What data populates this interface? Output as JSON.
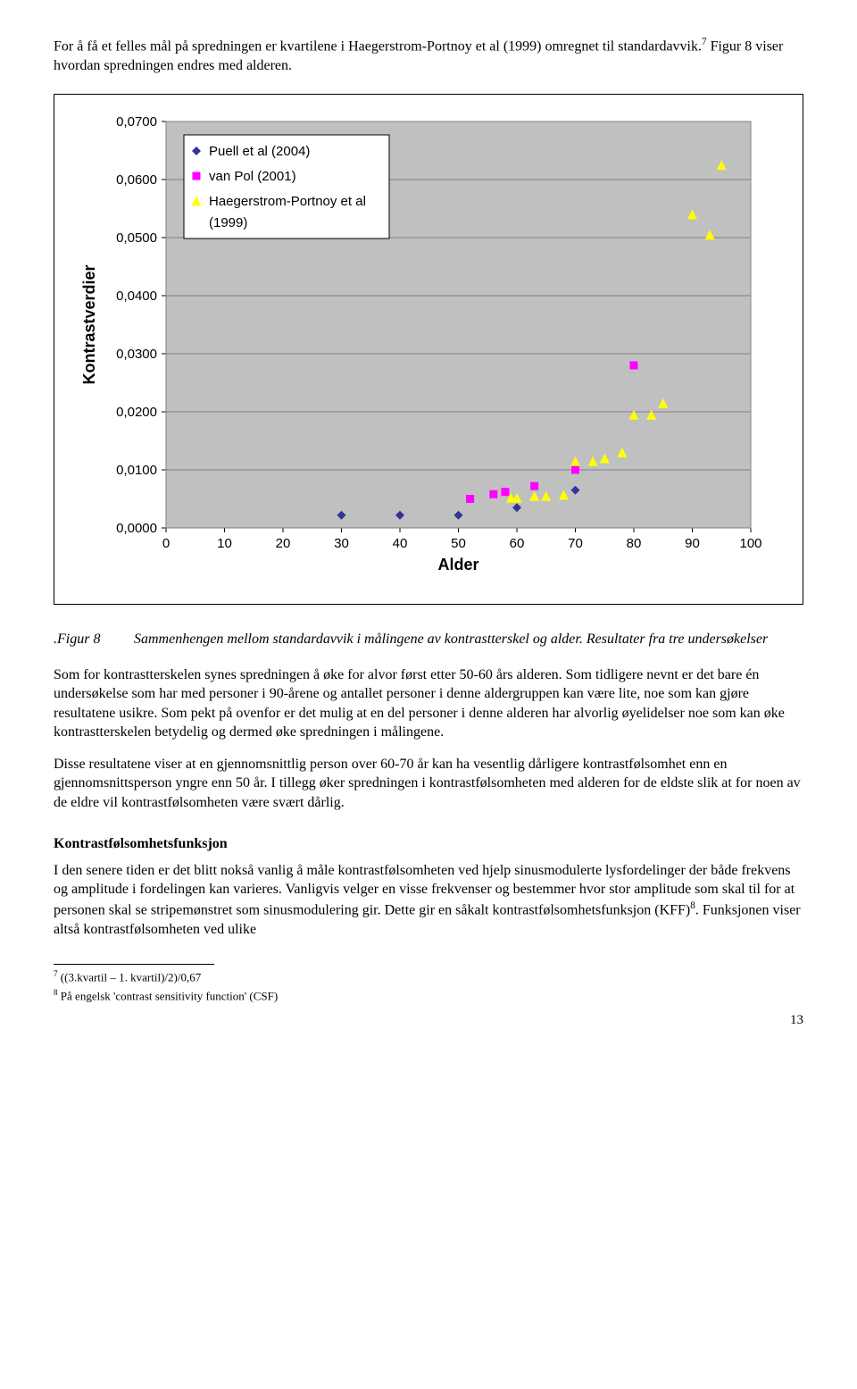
{
  "intro": "For å få et felles mål på spredningen er kvartilene i Haegerstrom-Portnoy et al (1999) omregnet til standardavvik.",
  "intro_sup": "7",
  "intro_tail": " Figur 8 viser hvordan spredningen endres med alderen.",
  "chart": {
    "type": "scatter",
    "ylabel": "Kontrastverdier",
    "xlabel": "Alder",
    "xlim": [
      0,
      100
    ],
    "ylim": [
      0,
      0.07
    ],
    "xticks": [
      0,
      10,
      20,
      30,
      40,
      50,
      60,
      70,
      80,
      90,
      100
    ],
    "yticks": [
      {
        "v": 0.0,
        "label": "0,0000"
      },
      {
        "v": 0.01,
        "label": "0,0100"
      },
      {
        "v": 0.02,
        "label": "0,0200"
      },
      {
        "v": 0.03,
        "label": "0,0300"
      },
      {
        "v": 0.04,
        "label": "0,0400"
      },
      {
        "v": 0.05,
        "label": "0,0500"
      },
      {
        "v": 0.06,
        "label": "0,0600"
      },
      {
        "v": 0.07,
        "label": "0,0700"
      }
    ],
    "background_color": "#c0c0c0",
    "grid_color": "#808080",
    "series": [
      {
        "name": "Puell et al (2004)",
        "marker": "diamond",
        "color": "#333399",
        "points": [
          [
            30,
            0.0022
          ],
          [
            40,
            0.0022
          ],
          [
            50,
            0.0022
          ],
          [
            60,
            0.0035
          ],
          [
            70,
            0.0065
          ]
        ]
      },
      {
        "name": "van Pol (2001)",
        "marker": "square",
        "color": "#ff00ff",
        "points": [
          [
            52,
            0.005
          ],
          [
            56,
            0.0058
          ],
          [
            58,
            0.0062
          ],
          [
            63,
            0.0072
          ],
          [
            70,
            0.01
          ],
          [
            80,
            0.028
          ]
        ]
      },
      {
        "name": "Haegerstrom-Portnoy et al (1999)",
        "marker": "triangle",
        "color": "#ffff00",
        "points": [
          [
            59,
            0.0052
          ],
          [
            60,
            0.0052
          ],
          [
            63,
            0.0055
          ],
          [
            65,
            0.0055
          ],
          [
            68,
            0.0057
          ],
          [
            70,
            0.0115
          ],
          [
            73,
            0.0115
          ],
          [
            75,
            0.012
          ],
          [
            78,
            0.013
          ],
          [
            80,
            0.0195
          ],
          [
            83,
            0.0195
          ],
          [
            85,
            0.0215
          ],
          [
            90,
            0.054
          ],
          [
            93,
            0.0505
          ],
          [
            95,
            0.0625
          ]
        ]
      }
    ],
    "legend": {
      "items": [
        {
          "marker": "diamond",
          "color": "#333399",
          "label": "Puell et al (2004)"
        },
        {
          "marker": "square",
          "color": "#ff00ff",
          "label": "van Pol (2001)"
        },
        {
          "marker": "triangle",
          "color": "#ffff00",
          "label": "Haegerstrom-Portnoy et al\n(1999)"
        }
      ]
    }
  },
  "figure_label": ".Figur 8",
  "figure_caption": "Sammenhengen mellom standardavvik i målingene av kontrastterskel  og alder. Resultater fra tre undersøkelser",
  "para2": "Som for kontrastterskelen synes spredningen å øke for alvor først etter 50-60 års alderen. Som tidligere nevnt er det bare én undersøkelse som har med personer i 90-årene og antallet personer i denne aldergruppen kan være lite, noe som kan gjøre resultatene usikre. Som pekt på ovenfor er det mulig at en del personer i denne alderen har alvorlig øyelidelser noe som kan øke kontrastterskelen betydelig og dermed øke spredningen i målingene.",
  "para3": "Disse resultatene viser at en gjennomsnittlig person over 60-70 år kan ha vesentlig dårligere kontrastfølsomhet enn en gjennomsnittsperson yngre enn 50 år. I tillegg øker spredningen i kontrastfølsomheten med alderen for de eldste slik at for noen av de eldre vil kontrastfølsomheten være svært dårlig.",
  "section_heading": "Kontrastfølsomhetsfunksjon",
  "para4_a": "I den senere tiden er det blitt nokså vanlig å måle kontrastfølsomheten ved hjelp sinusmodulerte lysfordelinger der både frekvens og amplitude i fordelingen kan varieres. Vanligvis velger en visse frekvenser og bestemmer hvor stor amplitude som skal til for at personen skal se stripemønstret som sinusmodulering gir. Dette gir en såkalt kontrastfølsomhetsfunksjon (KFF)",
  "para4_sup": "8",
  "para4_b": ". Funksjonen viser altså kontrastfølsomheten ved ulike",
  "footnote7": " ((3.kvartil – 1. kvartil)/2)/0,67",
  "footnote8": " På engelsk 'contrast sensitivity function' (CSF)",
  "page_number": "13"
}
